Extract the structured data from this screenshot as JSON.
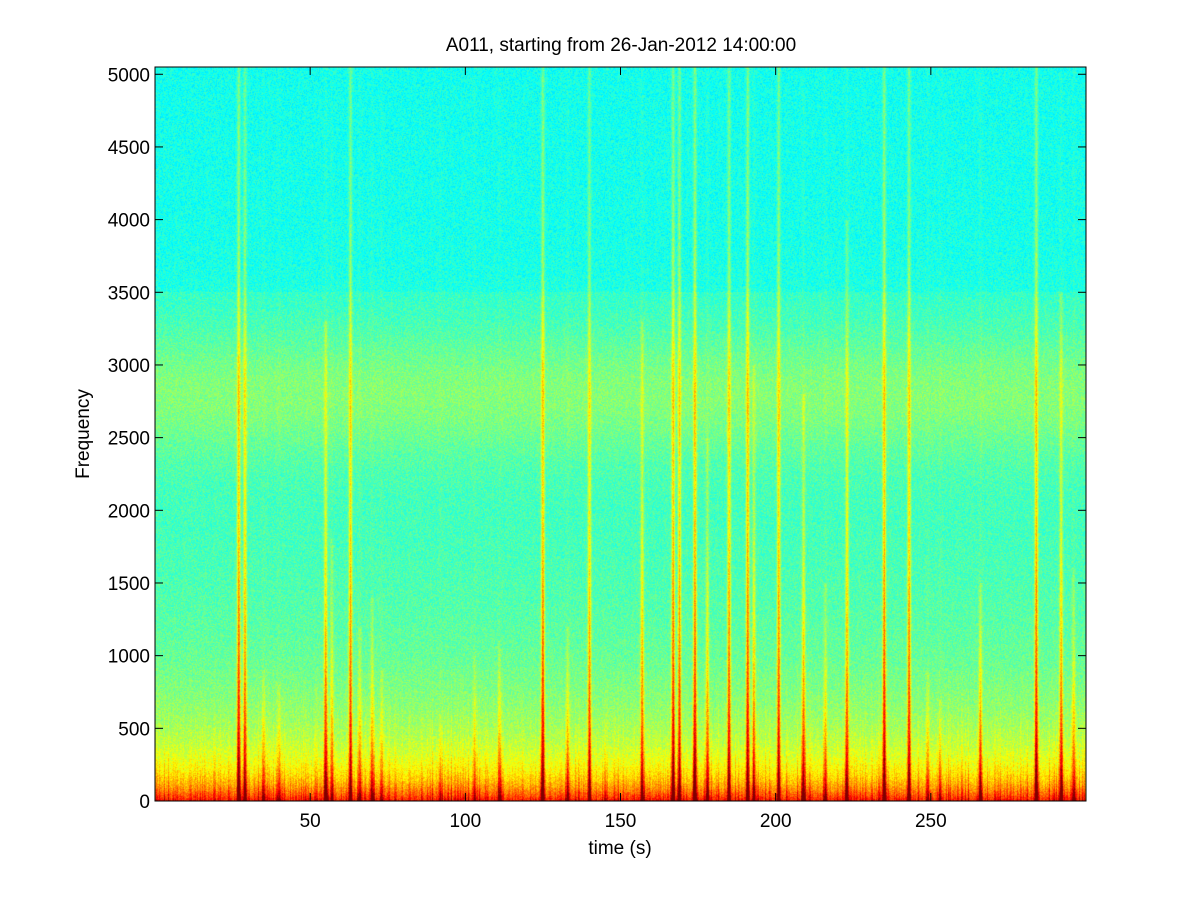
{
  "chart_data": {
    "type": "heatmap",
    "subtype": "spectrogram",
    "title": "A011, starting from 26-Jan-2012 14:00:00",
    "xlabel": "time (s)",
    "ylabel": "Frequency",
    "xlim": [
      0,
      300
    ],
    "ylim": [
      0,
      5050
    ],
    "xticks": [
      50,
      100,
      150,
      200,
      250
    ],
    "yticks": [
      0,
      500,
      1000,
      1500,
      2000,
      2500,
      3000,
      3500,
      4000,
      4500,
      5000
    ],
    "colormap": "jet",
    "background_intensity": "cyan at high frequency, green-yellow near 2800, yellow-orange below 700, red below 200",
    "events": [
      {
        "t": 27,
        "top_freq": 5050,
        "strength": 1.0
      },
      {
        "t": 29,
        "top_freq": 5050,
        "strength": 0.8
      },
      {
        "t": 35,
        "top_freq": 900,
        "strength": 0.6
      },
      {
        "t": 40,
        "top_freq": 800,
        "strength": 0.5
      },
      {
        "t": 55,
        "top_freq": 3300,
        "strength": 0.9
      },
      {
        "t": 57,
        "top_freq": 1800,
        "strength": 0.6
      },
      {
        "t": 63,
        "top_freq": 5050,
        "strength": 0.9
      },
      {
        "t": 66,
        "top_freq": 1200,
        "strength": 0.6
      },
      {
        "t": 70,
        "top_freq": 1400,
        "strength": 0.6
      },
      {
        "t": 73,
        "top_freq": 900,
        "strength": 0.5
      },
      {
        "t": 92,
        "top_freq": 600,
        "strength": 0.4
      },
      {
        "t": 103,
        "top_freq": 1000,
        "strength": 0.5
      },
      {
        "t": 111,
        "top_freq": 1100,
        "strength": 0.5
      },
      {
        "t": 125,
        "top_freq": 5050,
        "strength": 1.0
      },
      {
        "t": 133,
        "top_freq": 1200,
        "strength": 0.6
      },
      {
        "t": 140,
        "top_freq": 5050,
        "strength": 0.8
      },
      {
        "t": 157,
        "top_freq": 3300,
        "strength": 0.8
      },
      {
        "t": 167,
        "top_freq": 5050,
        "strength": 1.0
      },
      {
        "t": 169,
        "top_freq": 5050,
        "strength": 0.9
      },
      {
        "t": 174,
        "top_freq": 5050,
        "strength": 1.0
      },
      {
        "t": 178,
        "top_freq": 2500,
        "strength": 0.7
      },
      {
        "t": 185,
        "top_freq": 5050,
        "strength": 0.9
      },
      {
        "t": 191,
        "top_freq": 5050,
        "strength": 1.0
      },
      {
        "t": 193,
        "top_freq": 3000,
        "strength": 0.7
      },
      {
        "t": 201,
        "top_freq": 5050,
        "strength": 0.9
      },
      {
        "t": 209,
        "top_freq": 2800,
        "strength": 0.8
      },
      {
        "t": 216,
        "top_freq": 1500,
        "strength": 0.6
      },
      {
        "t": 223,
        "top_freq": 4000,
        "strength": 0.8
      },
      {
        "t": 235,
        "top_freq": 5050,
        "strength": 1.0
      },
      {
        "t": 243,
        "top_freq": 5050,
        "strength": 0.9
      },
      {
        "t": 249,
        "top_freq": 900,
        "strength": 0.5
      },
      {
        "t": 253,
        "top_freq": 700,
        "strength": 0.5
      },
      {
        "t": 266,
        "top_freq": 1500,
        "strength": 0.8
      },
      {
        "t": 284,
        "top_freq": 5050,
        "strength": 1.0
      },
      {
        "t": 292,
        "top_freq": 3500,
        "strength": 0.8
      },
      {
        "t": 296,
        "top_freq": 1600,
        "strength": 0.6
      }
    ],
    "colors": {
      "background": "#ffffff",
      "axis": "#000000",
      "cyan": "#19d7d2",
      "red": "#d60000"
    }
  }
}
